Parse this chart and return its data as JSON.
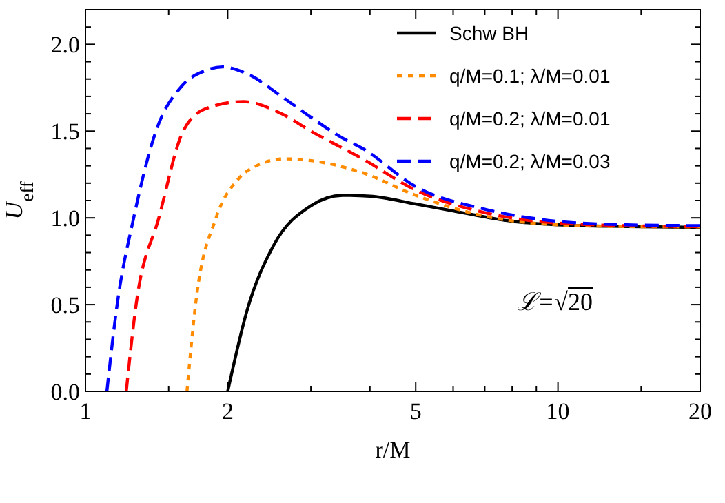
{
  "chart_data": {
    "type": "line",
    "xlabel": "r/M",
    "ylabel": "U$_{eff}$",
    "log": "x",
    "xlim": [
      1,
      20
    ],
    "xticks": [
      1,
      {
        "value": 1.5,
        "label": null
      },
      2,
      {
        "value": 3,
        "label": null
      },
      {
        "value": 4,
        "label": null
      },
      5,
      {
        "value": 6,
        "label": null
      },
      {
        "value": 7,
        "label": null
      },
      {
        "value": 8,
        "label": null
      },
      {
        "value": 9,
        "label": null
      },
      10,
      {
        "value": 15,
        "label": null
      },
      20
    ],
    "ylim": [
      0,
      2.2
    ],
    "yticks": [
      {
        "value": 0,
        "label": "0.0"
      },
      {
        "value": 0.1,
        "label": null
      },
      {
        "value": 0.2,
        "label": null
      },
      {
        "value": 0.3,
        "label": null
      },
      {
        "value": 0.4,
        "label": null
      },
      {
        "value": 0.5,
        "label": "0.5"
      },
      {
        "value": 0.6,
        "label": null
      },
      {
        "value": 0.7,
        "label": null
      },
      {
        "value": 0.8,
        "label": null
      },
      {
        "value": 0.9,
        "label": null
      },
      {
        "value": 1,
        "label": "1.0"
      },
      {
        "value": 1.1,
        "label": null
      },
      {
        "value": 1.2,
        "label": null
      },
      {
        "value": 1.3,
        "label": null
      },
      {
        "value": 1.4,
        "label": null
      },
      {
        "value": 1.5,
        "label": "1.5"
      },
      {
        "value": 1.6,
        "label": null
      },
      {
        "value": 1.7,
        "label": null
      },
      {
        "value": 1.8,
        "label": null
      },
      {
        "value": 1.9,
        "label": null
      },
      {
        "value": 2,
        "label": "2.0"
      },
      {
        "value": 2.1,
        "label": null
      },
      {
        "value": 2.2,
        "label": null
      }
    ],
    "grid": false,
    "legend": "top right",
    "marker": "none",
    "annotations": [
      "ℒ=√20"
    ],
    "series": [
      {
        "name": "Schw BH",
        "color": "#000000",
        "line_style": "solid",
        "x": [
          2,
          2.2,
          2.5,
          3,
          3.5,
          4,
          5,
          6,
          8,
          10,
          14,
          20
        ],
        "values": [
          0,
          0.47,
          0.84,
          1.07,
          1.13,
          1.125,
          1.08,
          1.04,
          0.98,
          0.96,
          0.95,
          0.945
        ]
      },
      {
        "name": "q/M=0.1; λ/M=0.01",
        "color": "#ff8c00",
        "line_style": "dotted",
        "x": [
          1.64,
          1.71,
          1.89,
          2.1,
          2.3,
          2.64,
          3,
          3.86,
          5,
          7,
          10,
          14,
          20
        ],
        "values": [
          0,
          0.5,
          1.0,
          1.22,
          1.3,
          1.34,
          1.33,
          1.26,
          1.13,
          1.01,
          0.96,
          0.95,
          0.948
        ]
      },
      {
        "name": "q/M=0.2; λ/M=0.01",
        "color": "#ff0000",
        "line_style": "dashed",
        "x": [
          1.22,
          1.28,
          1.43,
          1.61,
          1.8,
          2.16,
          2.6,
          3,
          3.86,
          5,
          7,
          10,
          14,
          20
        ],
        "values": [
          0,
          0.5,
          1.0,
          1.5,
          1.63,
          1.67,
          1.6,
          1.5,
          1.34,
          1.16,
          1.03,
          0.97,
          0.955,
          0.95
        ]
      },
      {
        "name": "q/M=0.2; λ/M=0.03",
        "color": "#0000ff",
        "line_style": "dashed",
        "x": [
          1.11,
          1.167,
          1.265,
          1.41,
          1.6,
          1.8,
          1.95,
          2.2,
          2.6,
          3,
          3.5,
          3.86,
          5,
          7,
          10,
          14,
          20
        ],
        "values": [
          0,
          0.5,
          1.0,
          1.5,
          1.76,
          1.85,
          1.87,
          1.83,
          1.7,
          1.58,
          1.46,
          1.4,
          1.18,
          1.05,
          0.98,
          0.96,
          0.955
        ]
      }
    ]
  }
}
